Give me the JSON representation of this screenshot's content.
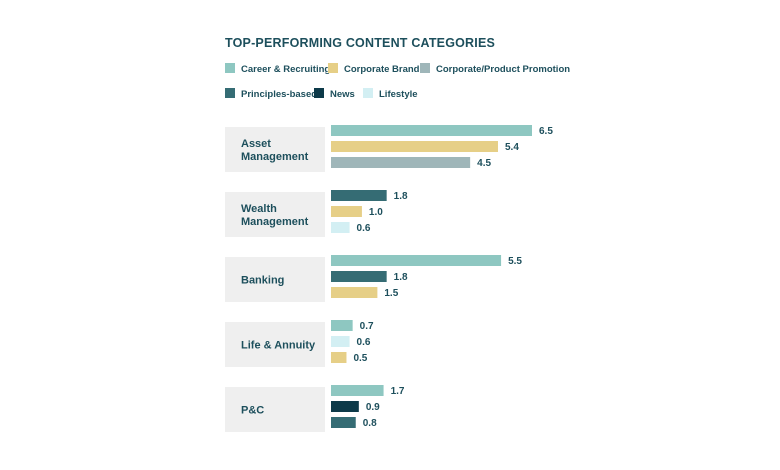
{
  "chart_data": {
    "type": "bar",
    "orientation": "horizontal",
    "title": "TOP-PERFORMING CONTENT CATEGORIES",
    "xlabel": "",
    "ylabel": "",
    "xlim": [
      0,
      6.5
    ],
    "grid": false,
    "legend_position": "top",
    "legend": [
      {
        "name": "Career & Recruiting",
        "color": "#8ec7c1"
      },
      {
        "name": "Corporate Brand",
        "color": "#e6cf87"
      },
      {
        "name": "Corporate/Product Promotion",
        "color": "#9fb6b9"
      },
      {
        "name": "Principles-based",
        "color": "#356c74"
      },
      {
        "name": "News",
        "color": "#0d3a49"
      },
      {
        "name": "Lifestyle",
        "color": "#d3eff3"
      }
    ],
    "groups": [
      {
        "label_lines": [
          "Asset",
          "Management"
        ],
        "bars": [
          {
            "series": "Career & Recruiting",
            "value": 6.5,
            "label": "6.5"
          },
          {
            "series": "Corporate Brand",
            "value": 5.4,
            "label": "5.4"
          },
          {
            "series": "Corporate/Product Promotion",
            "value": 4.5,
            "label": "4.5"
          }
        ]
      },
      {
        "label_lines": [
          "Wealth",
          "Management"
        ],
        "bars": [
          {
            "series": "Principles-based",
            "value": 1.8,
            "label": "1.8"
          },
          {
            "series": "Corporate Brand",
            "value": 1.0,
            "label": "1.0"
          },
          {
            "series": "Lifestyle",
            "value": 0.6,
            "label": "0.6"
          }
        ]
      },
      {
        "label_lines": [
          "Banking"
        ],
        "bars": [
          {
            "series": "Career & Recruiting",
            "value": 5.5,
            "label": "5.5"
          },
          {
            "series": "Principles-based",
            "value": 1.8,
            "label": "1.8"
          },
          {
            "series": "Corporate Brand",
            "value": 1.5,
            "label": "1.5"
          }
        ]
      },
      {
        "label_lines": [
          "Life & Annuity"
        ],
        "bars": [
          {
            "series": "Career & Recruiting",
            "value": 0.7,
            "label": "0.7"
          },
          {
            "series": "Lifestyle",
            "value": 0.6,
            "label": "0.6"
          },
          {
            "series": "Corporate Brand",
            "value": 0.5,
            "label": "0.5"
          }
        ]
      },
      {
        "label_lines": [
          "P&C"
        ],
        "bars": [
          {
            "series": "Career & Recruiting",
            "value": 1.7,
            "label": "1.7"
          },
          {
            "series": "News",
            "value": 0.9,
            "label": "0.9"
          },
          {
            "series": "Principles-based",
            "value": 0.8,
            "label": "0.8"
          }
        ]
      }
    ]
  }
}
